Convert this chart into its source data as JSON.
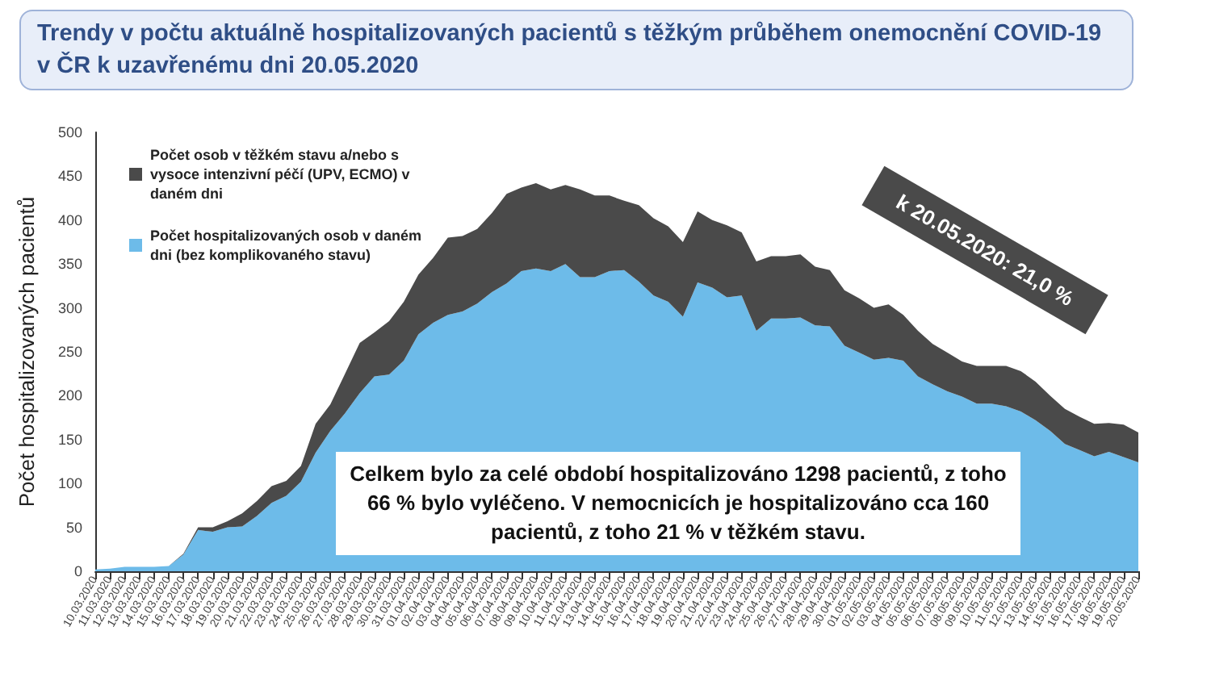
{
  "chart_data": {
    "type": "area",
    "stacked": true,
    "title": "Trendy v počtu aktuálně hospitalizovaných pacientů s těžkým průběhem onemocnění COVID-19 v ČR k uzavřenému dni 20.05.2020",
    "ylabel": "Počet hospitalizovaných pacientů",
    "categories": [
      "10.03.2020",
      "11.03.2020",
      "12.03.2020",
      "13.03.2020",
      "14.03.2020",
      "15.03.2020",
      "16.03.2020",
      "17.03.2020",
      "18.03.2020",
      "19.03.2020",
      "20.03.2020",
      "21.03.2020",
      "22.03.2020",
      "23.03.2020",
      "24.03.2020",
      "25.03.2020",
      "26.03.2020",
      "27.03.2020",
      "28.03.2020",
      "29.03.2020",
      "30.03.2020",
      "31.03.2020",
      "01.04.2020",
      "02.04.2020",
      "03.04.2020",
      "04.04.2020",
      "05.04.2020",
      "06.04.2020",
      "07.04.2020",
      "08.04.2020",
      "09.04.2020",
      "10.04.2020",
      "11.04.2020",
      "12.04.2020",
      "13.04.2020",
      "14.04.2020",
      "15.04.2020",
      "16.04.2020",
      "17.04.2020",
      "18.04.2020",
      "19.04.2020",
      "20.04.2020",
      "21.04.2020",
      "22.04.2020",
      "23.04.2020",
      "24.04.2020",
      "25.04.2020",
      "26.04.2020",
      "27.04.2020",
      "28.04.2020",
      "29.04.2020",
      "30.04.2020",
      "01.05.2020",
      "02.05.2020",
      "03.05.2020",
      "04.05.2020",
      "05.05.2020",
      "06.05.2020",
      "07.05.2020",
      "08.05.2020",
      "09.05.2020",
      "10.05.2020",
      "11.05.2020",
      "12.05.2020",
      "13.05.2020",
      "14.05.2020",
      "15.05.2020",
      "16.05.2020",
      "17.05.2020",
      "18.05.2020",
      "19.05.2020",
      "20.05.2020"
    ],
    "series": [
      {
        "name": "Počet hospitalizovaných osob v daném dni (bez komplikovaného stavu)",
        "color": "#6dbbe9",
        "values": [
          2,
          3,
          5,
          5,
          5,
          6,
          19,
          47,
          45,
          50,
          51,
          63,
          78,
          86,
          102,
          135,
          160,
          180,
          203,
          222,
          224,
          240,
          270,
          283,
          292,
          296,
          305,
          318,
          328,
          342,
          345,
          342,
          350,
          335,
          335,
          342,
          343,
          330,
          314,
          307,
          290,
          329,
          323,
          312,
          314,
          274,
          288,
          288,
          289,
          280,
          279,
          257,
          249,
          241,
          243,
          240,
          222,
          213,
          205,
          199,
          191,
          191,
          188,
          182,
          172,
          160,
          145,
          138,
          131,
          136,
          130,
          124
        ]
      },
      {
        "name": "Počet osob v těžkém stavu a/nebo s vysoce intenzivní péčí (UPV, ECMO) v daném dni",
        "color": "#4a4a4a",
        "values": [
          0,
          0,
          0,
          0,
          0,
          0,
          1,
          3,
          5,
          7,
          15,
          17,
          19,
          17,
          18,
          33,
          30,
          45,
          57,
          50,
          61,
          67,
          68,
          74,
          88,
          86,
          85,
          90,
          102,
          95,
          97,
          93,
          90,
          100,
          93,
          86,
          79,
          87,
          88,
          86,
          85,
          81,
          77,
          82,
          72,
          79,
          71,
          71,
          72,
          67,
          64,
          63,
          62,
          59,
          61,
          52,
          52,
          46,
          44,
          40,
          43,
          43,
          46,
          46,
          44,
          40,
          40,
          38,
          37,
          33,
          37,
          34
        ]
      }
    ],
    "ylim": [
      0,
      500
    ],
    "yticks": [
      0,
      50,
      100,
      150,
      200,
      250,
      300,
      350,
      400,
      450,
      500
    ],
    "grid": false,
    "legend": "top left",
    "annotations": [
      "Celkem bylo za celé období hospitalizováno 1298 pacientů, z toho 66 % bylo vyléčeno. V nemocnicích je hospitalizováno cca 160  pacientů, z toho 21 % v těžkém stavu.",
      "k 20.05.2020: 21,0 %"
    ]
  }
}
